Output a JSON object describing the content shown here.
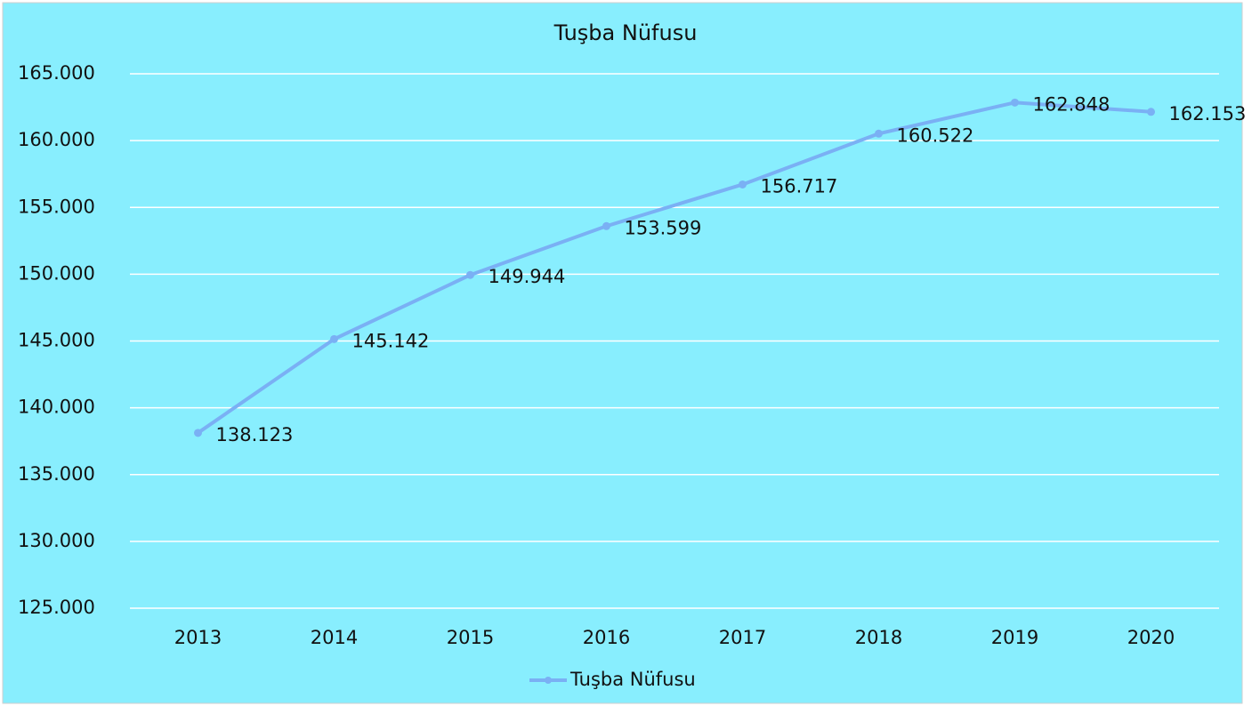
{
  "chart_data": {
    "type": "line",
    "title": "Tuşba Nüfusu",
    "categories": [
      "2013",
      "2014",
      "2015",
      "2016",
      "2017",
      "2018",
      "2019",
      "2020"
    ],
    "series": [
      {
        "name": "Tuşba Nüfusu",
        "color": "#7ab0f4",
        "values": [
          138123,
          145142,
          149944,
          153599,
          156717,
          160522,
          162848,
          162153
        ],
        "value_labels": [
          "138.123",
          "145.142",
          "149.944",
          "153.599",
          "156.717",
          "160.522",
          "162.848",
          "162.153"
        ]
      }
    ],
    "ylim": [
      125000,
      165000
    ],
    "yticks": [
      {
        "value": 125000,
        "label": "125.000"
      },
      {
        "value": 130000,
        "label": "130.000"
      },
      {
        "value": 135000,
        "label": "135.000"
      },
      {
        "value": 140000,
        "label": "140.000"
      },
      {
        "value": 145000,
        "label": "145.000"
      },
      {
        "value": 150000,
        "label": "150.000"
      },
      {
        "value": 155000,
        "label": "155.000"
      },
      {
        "value": 160000,
        "label": "160.000"
      },
      {
        "value": 165000,
        "label": "165.000"
      }
    ],
    "grid": true,
    "legend": "bottom"
  }
}
